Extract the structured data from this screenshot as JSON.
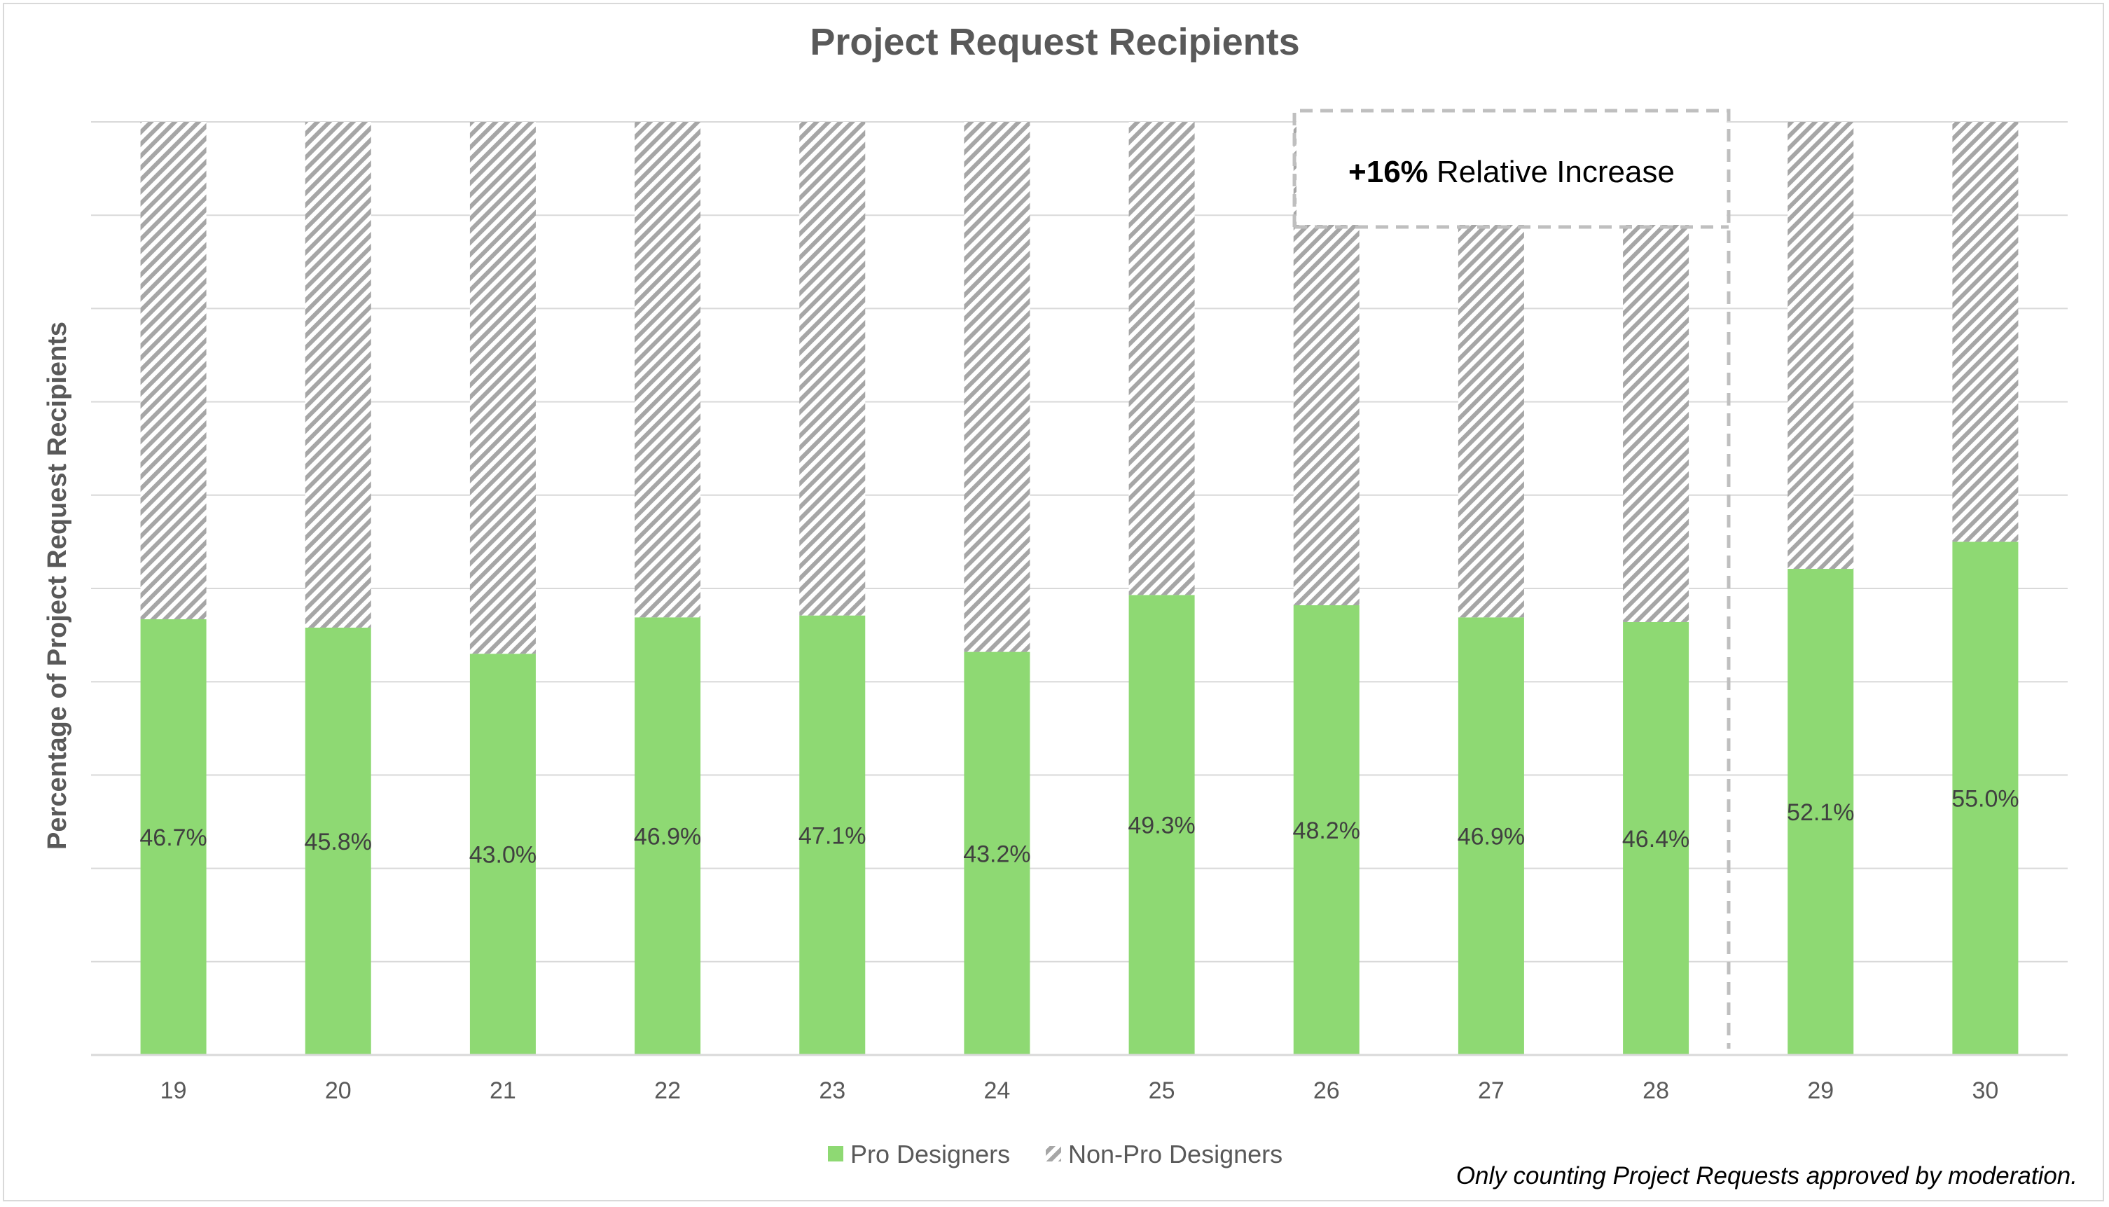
{
  "chart_data": {
    "type": "bar",
    "stacked": true,
    "title": "Project Request Recipients",
    "ylabel": "Percentage of Project Request Recipients",
    "xlabel": "",
    "ylim": [
      0,
      100
    ],
    "grid": true,
    "categories": [
      "19",
      "20",
      "21",
      "22",
      "23",
      "24",
      "25",
      "26",
      "27",
      "28",
      "29",
      "30"
    ],
    "series": [
      {
        "name": "Pro Designers",
        "color": "#8ed973",
        "values": [
          46.7,
          45.8,
          43.0,
          46.9,
          47.1,
          43.2,
          49.3,
          48.2,
          46.9,
          46.4,
          52.1,
          55.0
        ],
        "labels": [
          "46.7%",
          "45.8%",
          "43.0%",
          "46.9%",
          "47.1%",
          "43.2%",
          "49.3%",
          "48.2%",
          "46.9%",
          "46.4%",
          "52.1%",
          "55.0%"
        ]
      },
      {
        "name": "Non-Pro Designers",
        "color": "#a6a6a6",
        "pattern": "diagonal-hatch",
        "values": [
          53.3,
          54.2,
          57.0,
          53.1,
          52.9,
          56.8,
          50.7,
          51.8,
          53.1,
          53.6,
          47.9,
          45.0
        ]
      }
    ],
    "legend_position": "bottom",
    "annotation": {
      "bold": "+16%",
      "text": " Relative Increase",
      "style": "dashed-box"
    },
    "divider_after_category": "28",
    "footnote": "Only counting Project Requests approved by moderation."
  }
}
